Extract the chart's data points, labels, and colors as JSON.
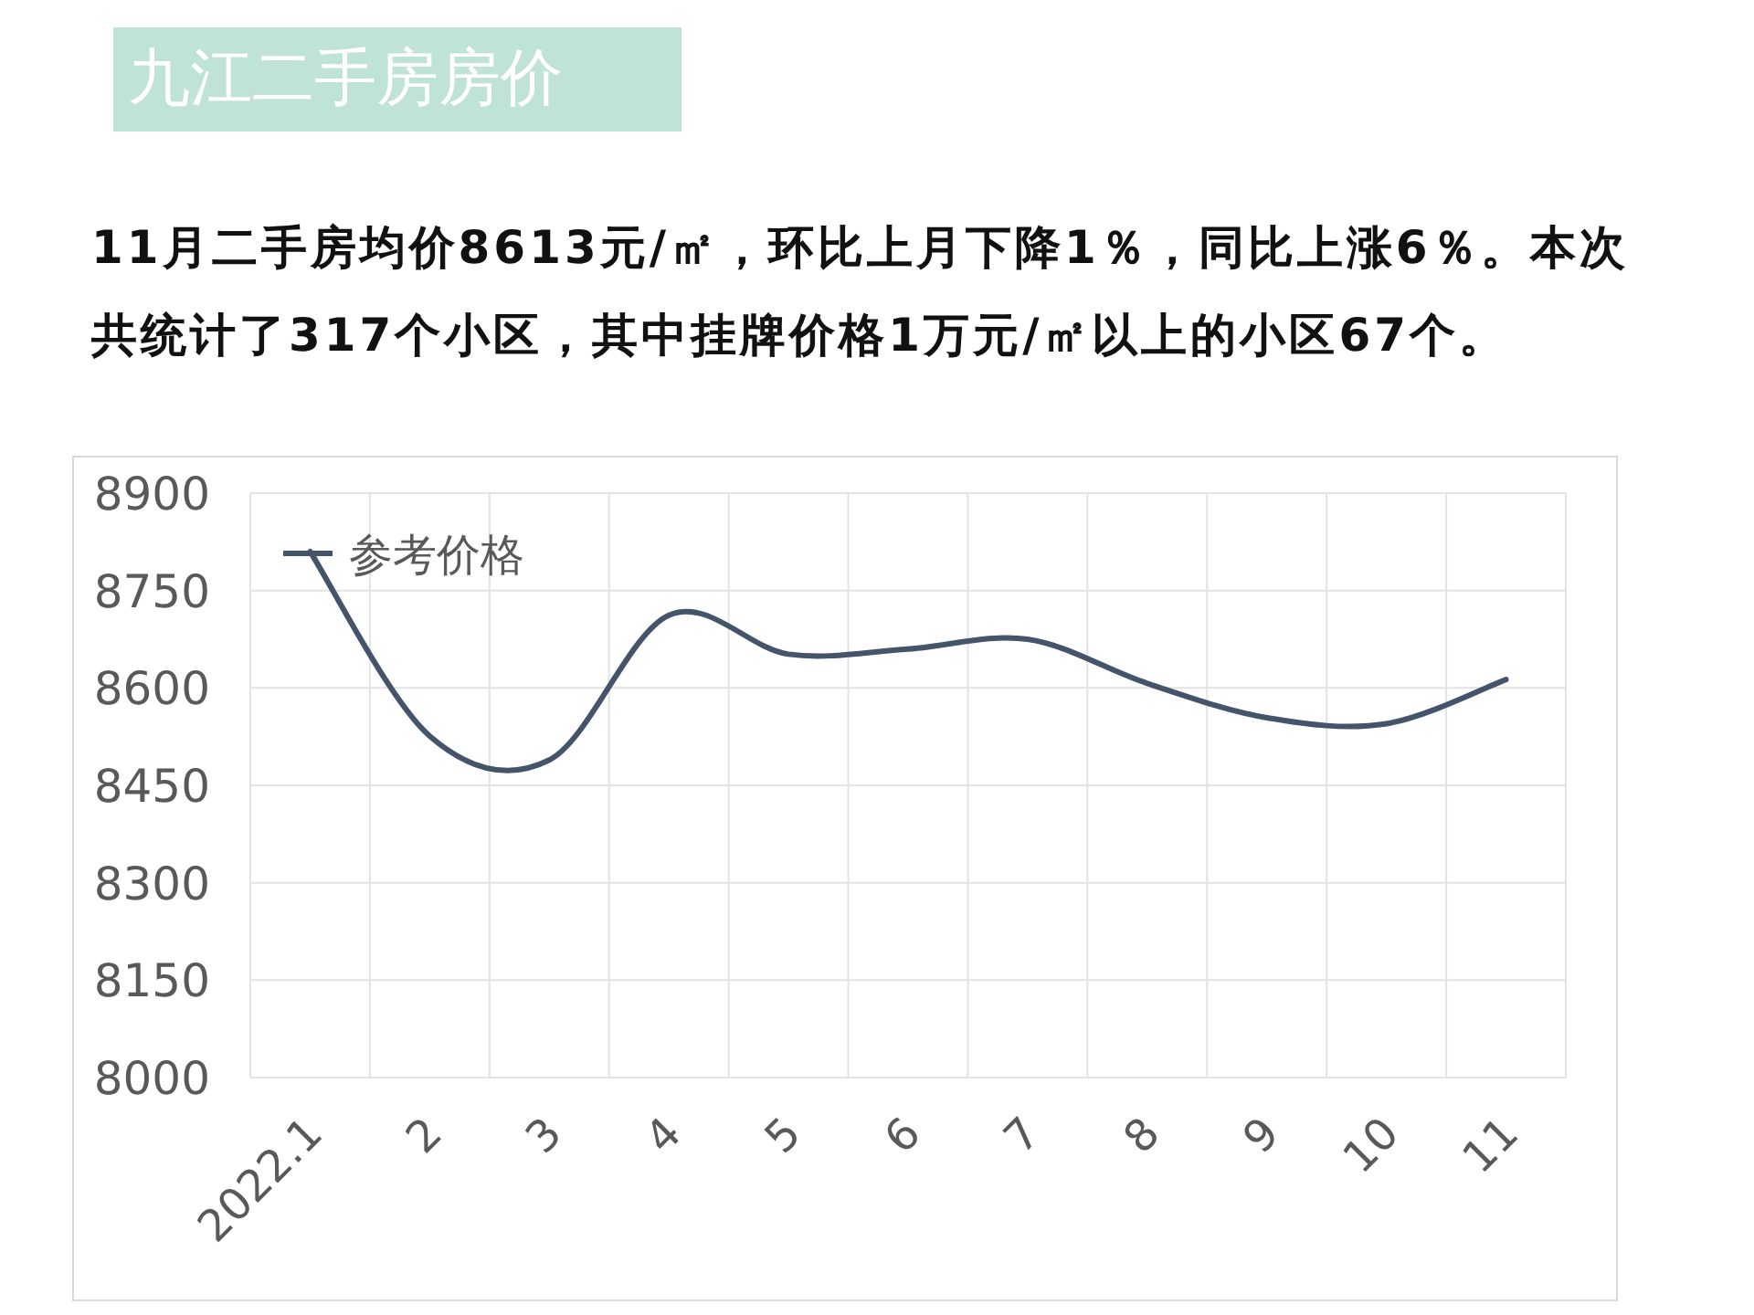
{
  "chart_data": {
    "type": "line",
    "title": "九江二手房房价",
    "subtitle": "11月二手房均价8613元/㎡，环比上月下降1％，同比上涨6％。本次共统计了317个小区，其中挂牌价格1万元/㎡以上的小区67个。",
    "categories": [
      "2022.1",
      "2",
      "3",
      "4",
      "5",
      "6",
      "7",
      "8",
      "9",
      "10",
      "11"
    ],
    "series": [
      {
        "name": "参考价格",
        "color": "#44546a",
        "values": [
          8810,
          8526,
          8489,
          8712,
          8652,
          8660,
          8675,
          8607,
          8554,
          8545,
          8613
        ]
      }
    ],
    "ylim": [
      8000,
      8900
    ],
    "yticks": [
      8000,
      8150,
      8300,
      8450,
      8600,
      8750,
      8900
    ],
    "grid": true,
    "legend": "top left",
    "marker": "none"
  }
}
